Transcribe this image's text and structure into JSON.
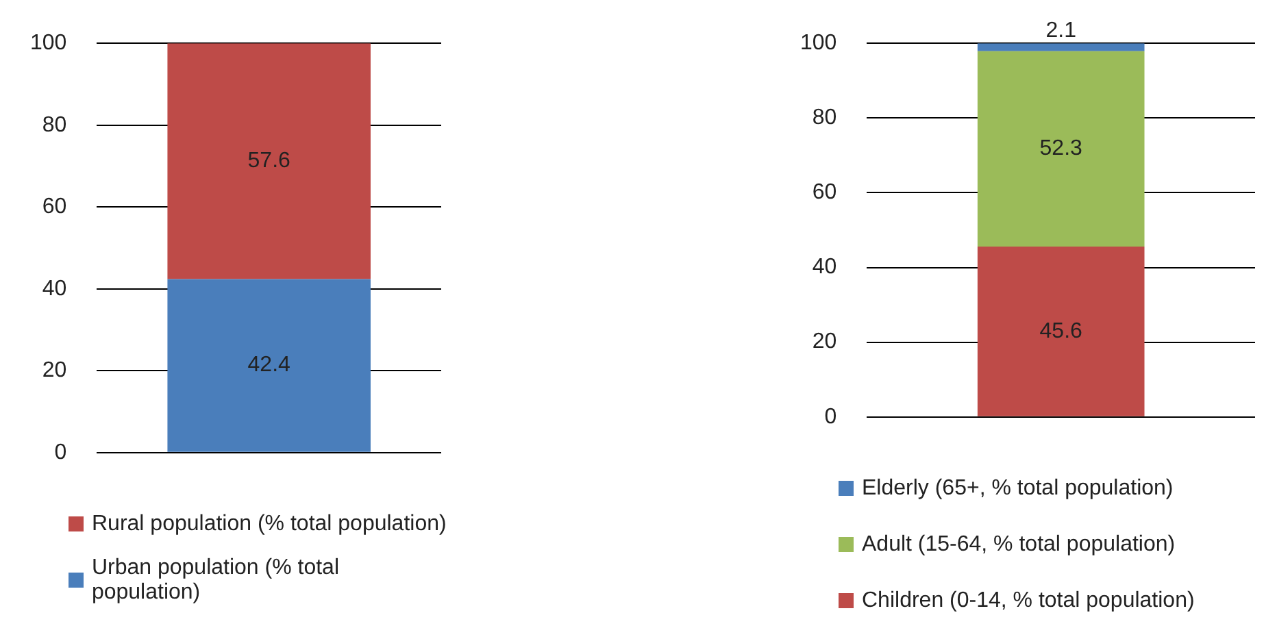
{
  "chart_data": [
    {
      "type": "bar",
      "stacked": true,
      "categories": [
        null
      ],
      "series": [
        {
          "name": "Urban population (% total population)",
          "color": "#4a7ebb",
          "values": [
            42.4
          ]
        },
        {
          "name": "Rural population (% total population)",
          "color": "#be4b48",
          "values": [
            57.6
          ]
        }
      ],
      "ylim": [
        0,
        100
      ],
      "yticks": [
        0,
        20,
        40,
        60,
        80,
        100
      ],
      "grid": "y",
      "legend": "bottom",
      "data_labels": true
    },
    {
      "type": "bar",
      "stacked": true,
      "categories": [
        null
      ],
      "series": [
        {
          "name": "Children (0-14, % total population)",
          "color": "#be4b48",
          "values": [
            45.6
          ]
        },
        {
          "name": "Adult (15-64, % total population)",
          "color": "#9bbb59",
          "values": [
            52.3
          ]
        },
        {
          "name": "Elderly (65+, % total population)",
          "color": "#4a7ebb",
          "values": [
            2.1
          ]
        }
      ],
      "ylim": [
        0,
        100
      ],
      "yticks": [
        0,
        20,
        40,
        60,
        80,
        100
      ],
      "grid": "y",
      "legend": "bottom",
      "data_labels": true
    }
  ]
}
